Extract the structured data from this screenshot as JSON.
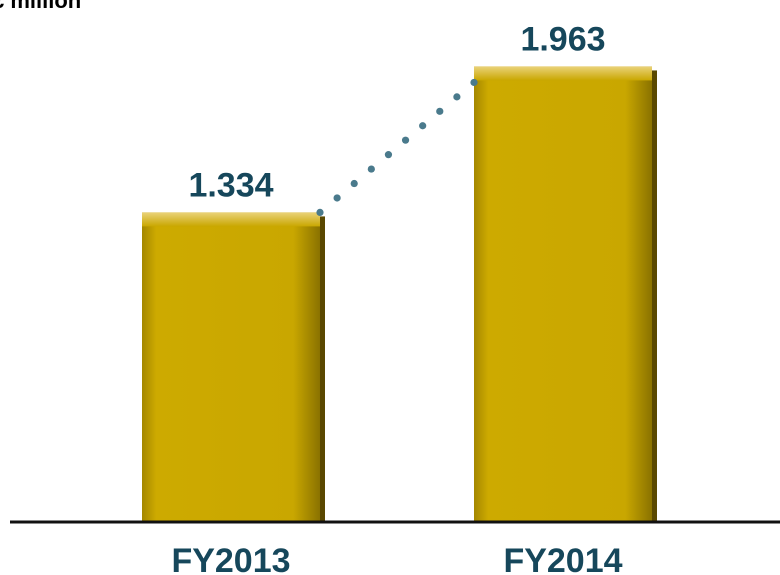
{
  "chart_data": {
    "type": "bar",
    "unit_label": "€ million",
    "categories": [
      "FY2013",
      "FY2014"
    ],
    "values": [
      1.334,
      1.963
    ],
    "data_labels": [
      "1.334",
      "1.963"
    ],
    "title": "",
    "xlabel": "",
    "ylabel": "",
    "ylim": [
      0,
      2.12
    ],
    "grid": false,
    "legend": "none",
    "connector": "dotted",
    "colors": {
      "bar": "#c9a700",
      "bar_highlight": "#e2c74a",
      "bar_shadow": "#5a4800",
      "label": "#16475b",
      "connector": "#4a7a8c",
      "axis": "#111111"
    }
  }
}
